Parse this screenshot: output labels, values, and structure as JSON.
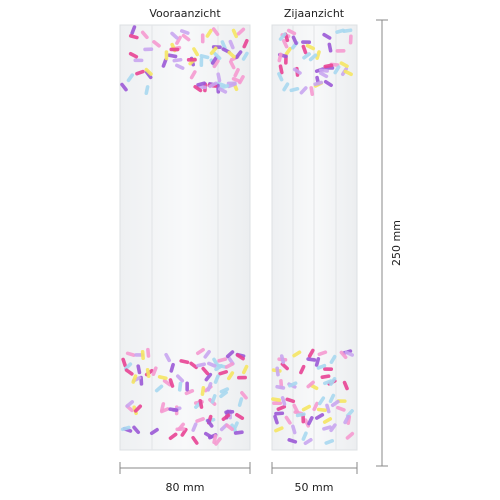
{
  "views": [
    {
      "label": "Vooraanzicht",
      "width_label": "80 mm"
    },
    {
      "label": "Zijaanzicht",
      "width_label": "50 mm"
    }
  ],
  "height_label": "250 mm"
}
